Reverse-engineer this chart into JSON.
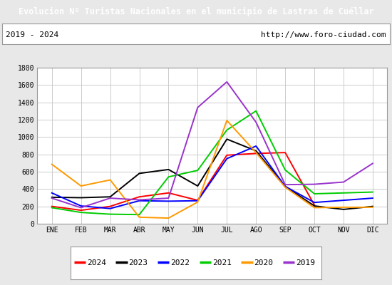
{
  "title": "Evolucion Nº Turistas Nacionales en el municipio de Lastras de Cuéllar",
  "subtitle_left": "2019 - 2024",
  "subtitle_right": "http://www.foro-ciudad.com",
  "title_bg_color": "#4d7ebf",
  "title_text_color": "#ffffff",
  "months": [
    "ENE",
    "FEB",
    "MAR",
    "ABR",
    "MAY",
    "JUN",
    "JUL",
    "AGO",
    "SEP",
    "OCT",
    "NOV",
    "DIC"
  ],
  "ylim": [
    0,
    1800
  ],
  "yticks": [
    0,
    200,
    400,
    600,
    800,
    1000,
    1200,
    1400,
    1600,
    1800
  ],
  "series": {
    "2024": {
      "color": "#ff0000",
      "data": [
        200,
        155,
        200,
        310,
        355,
        270,
        790,
        810,
        820,
        215,
        null,
        null
      ]
    },
    "2023": {
      "color": "#000000",
      "data": [
        305,
        300,
        310,
        580,
        625,
        435,
        975,
        840,
        430,
        205,
        165,
        200
      ]
    },
    "2022": {
      "color": "#0000ff",
      "data": [
        355,
        205,
        175,
        265,
        260,
        265,
        750,
        895,
        430,
        245,
        270,
        295
      ]
    },
    "2021": {
      "color": "#00cc00",
      "data": [
        185,
        130,
        110,
        105,
        540,
        615,
        1080,
        1300,
        620,
        345,
        355,
        365
      ]
    },
    "2020": {
      "color": "#ff9900",
      "data": [
        685,
        435,
        505,
        75,
        65,
        250,
        1190,
        820,
        420,
        185,
        190,
        190
      ]
    },
    "2019": {
      "color": "#9933cc",
      "data": [
        295,
        185,
        295,
        275,
        295,
        1340,
        1635,
        1170,
        450,
        455,
        480,
        695
      ]
    }
  },
  "legend_order": [
    "2024",
    "2023",
    "2022",
    "2021",
    "2020",
    "2019"
  ],
  "grid_color": "#cccccc",
  "plot_bg_color": "#e8e8e8",
  "chart_bg_color": "#ffffff",
  "outer_bg_color": "#d8d8d8",
  "border_color": "#999999"
}
